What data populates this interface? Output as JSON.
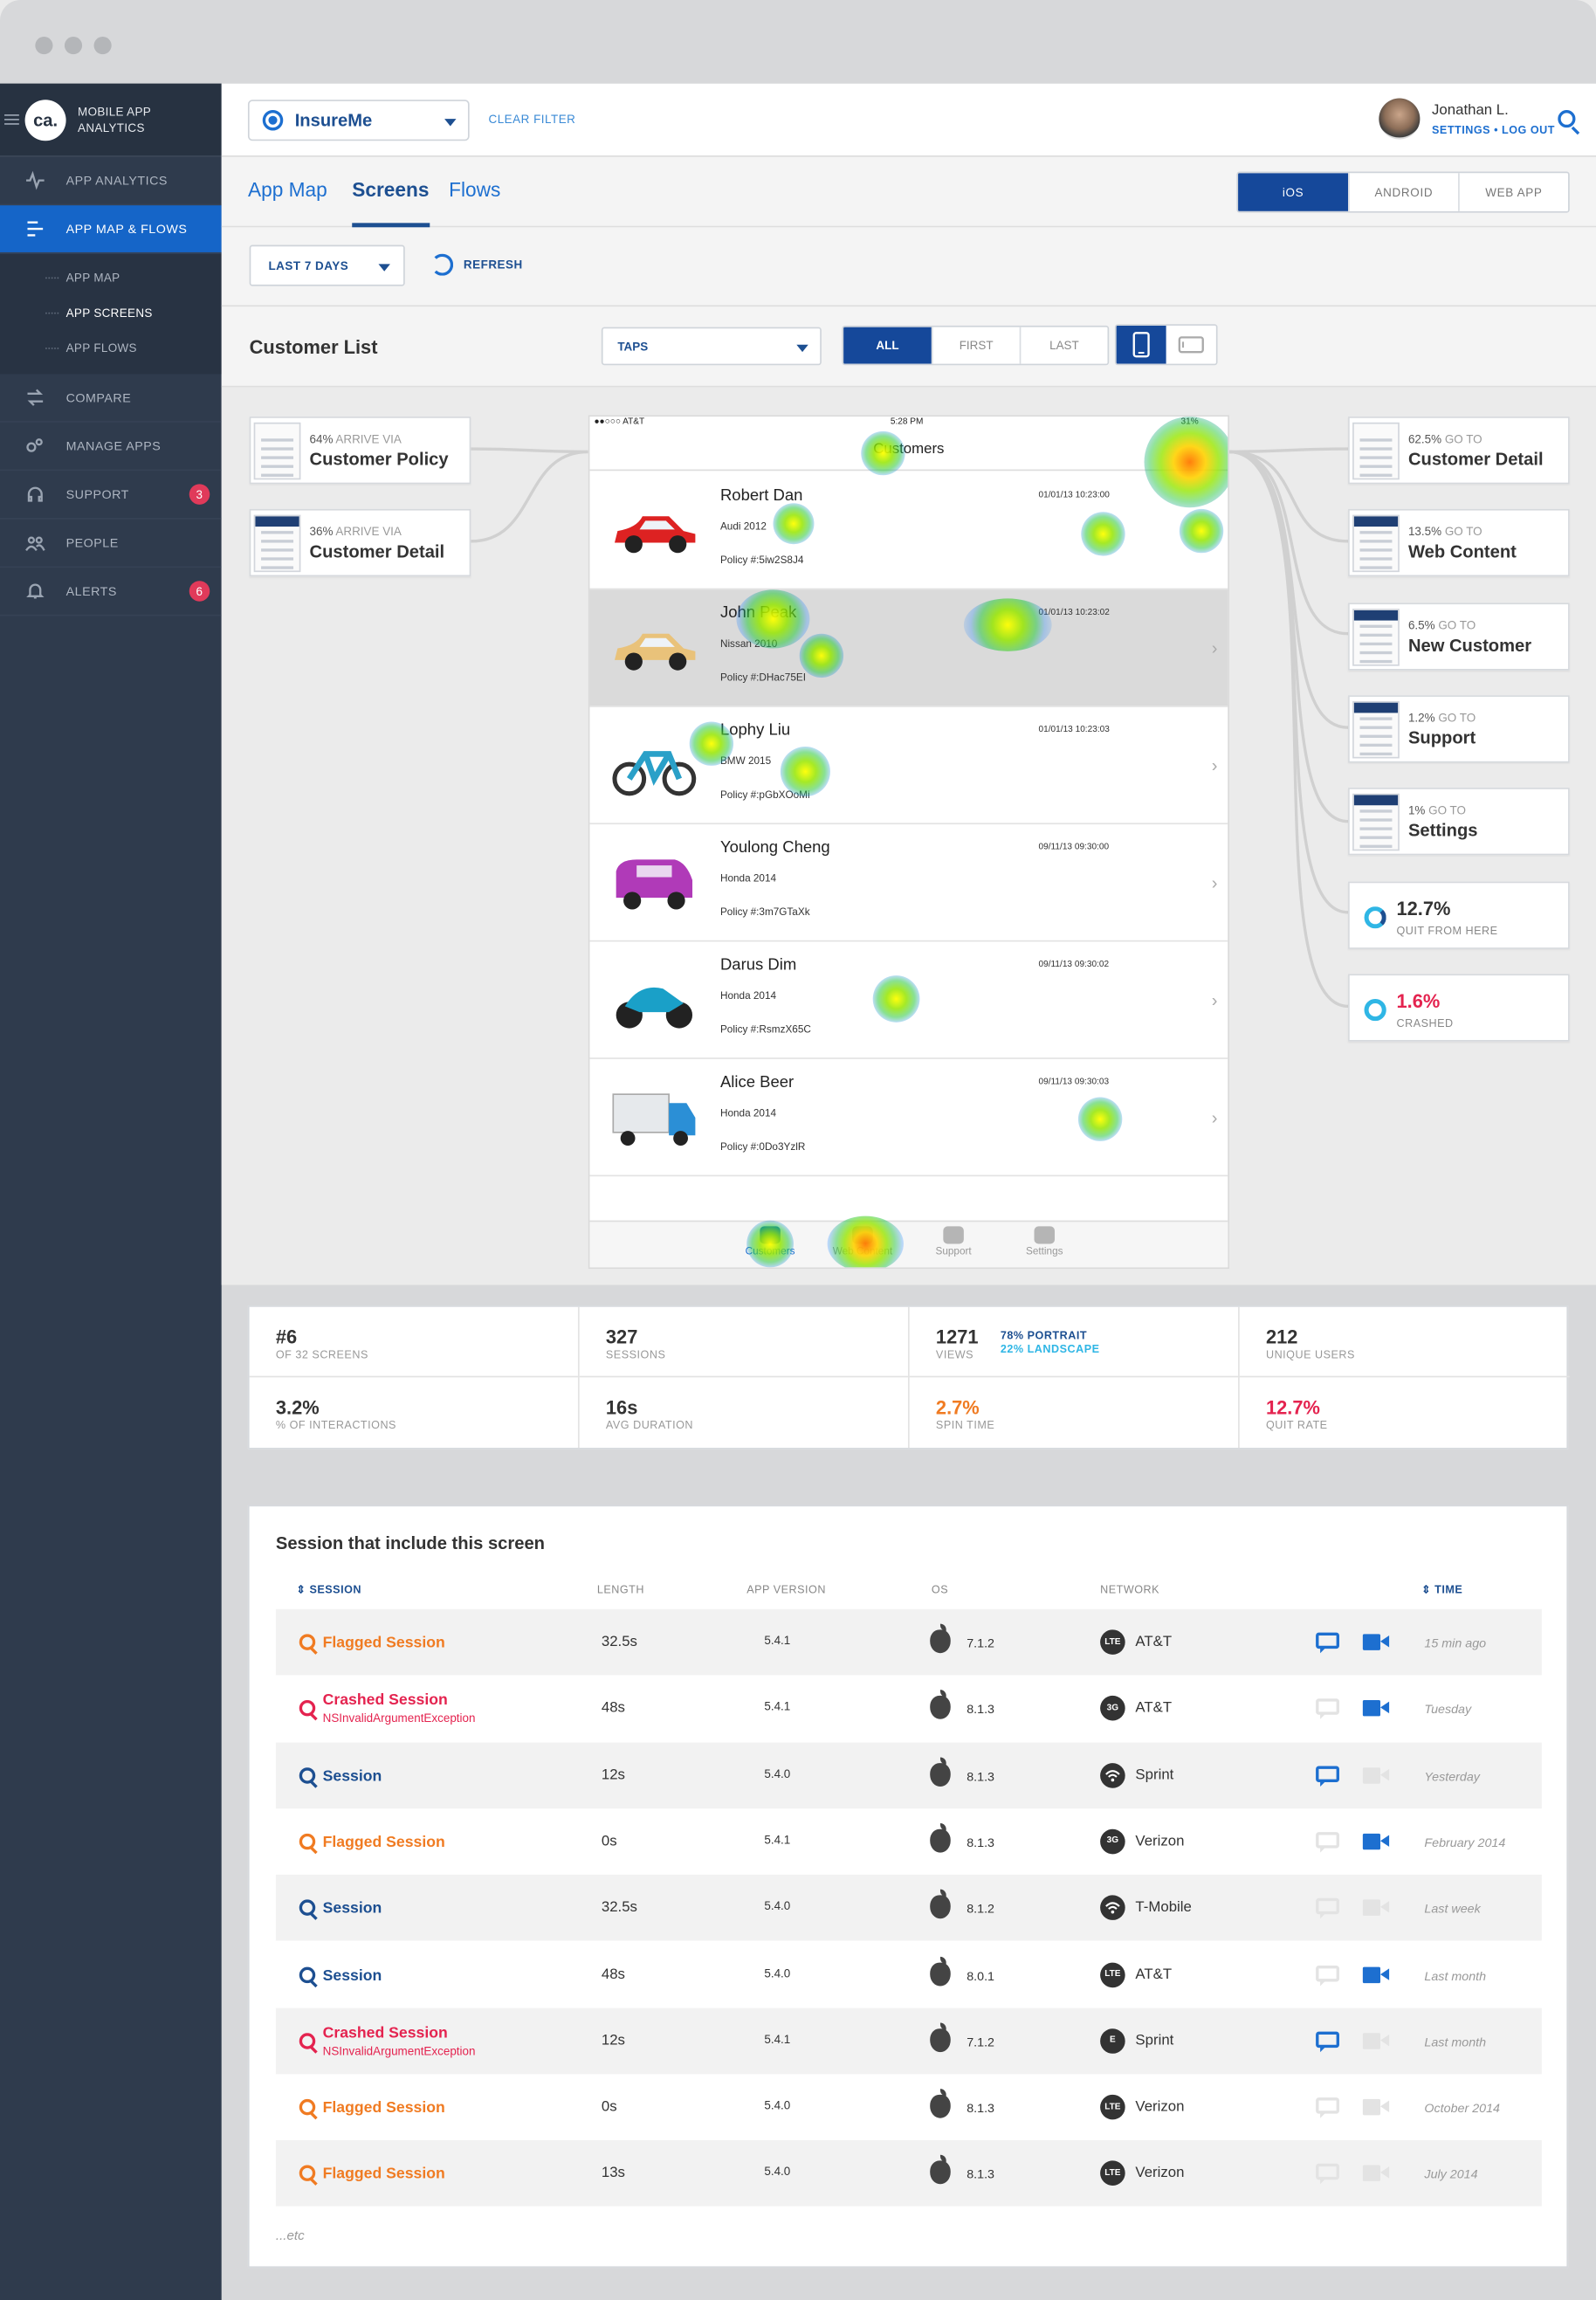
{
  "sidebar": {
    "brand": "MOBILE APP ANALYTICS",
    "logo": "ca.",
    "items": [
      {
        "label": "APP ANALYTICS",
        "icon": "pulse-icon"
      },
      {
        "label": "APP MAP & FLOWS",
        "icon": "flows-icon",
        "active": true
      },
      {
        "label": "COMPARE",
        "icon": "compare-icon"
      },
      {
        "label": "MANAGE APPS",
        "icon": "gears-icon"
      },
      {
        "label": "SUPPORT",
        "icon": "headset-icon",
        "badge": "3"
      },
      {
        "label": "PEOPLE",
        "icon": "people-icon"
      },
      {
        "label": "ALERTS",
        "icon": "bell-icon",
        "badge": "6"
      }
    ],
    "sub_items": [
      {
        "label": "APP MAP"
      },
      {
        "label": "APP SCREENS",
        "active": true
      },
      {
        "label": "APP FLOWS"
      }
    ]
  },
  "topbar": {
    "app_name": "InsureMe",
    "clear_filter": "CLEAR FILTER",
    "user_name": "Jonathan L.",
    "settings": "SETTINGS",
    "separator": "•",
    "logout": "LOG OUT"
  },
  "tabs": [
    {
      "label": "App Map"
    },
    {
      "label": "Screens",
      "active": true
    },
    {
      "label": "Flows"
    }
  ],
  "platforms": [
    {
      "label": "iOS",
      "active": true
    },
    {
      "label": "ANDROID"
    },
    {
      "label": "WEB APP"
    }
  ],
  "filter": {
    "range": "LAST 7 DAYS",
    "refresh": "REFRESH"
  },
  "screen": {
    "title": "Customer List",
    "event_type": "TAPS",
    "segments": [
      {
        "label": "ALL",
        "active": true
      },
      {
        "label": "FIRST"
      },
      {
        "label": "LAST"
      }
    ]
  },
  "inbound": [
    {
      "pct": "64%",
      "via": "ARRIVE VIA",
      "name": "Customer Policy"
    },
    {
      "pct": "36%",
      "via": "ARRIVE VIA",
      "name": "Customer Detail"
    }
  ],
  "outbound": [
    {
      "pct": "62.5%",
      "via": "GO TO",
      "name": "Customer Detail"
    },
    {
      "pct": "13.5%",
      "via": "GO TO",
      "name": "Web Content"
    },
    {
      "pct": "6.5%",
      "via": "GO TO",
      "name": "New Customer"
    },
    {
      "pct": "1.2%",
      "via": "GO TO",
      "name": "Support"
    },
    {
      "pct": "1%",
      "via": "GO TO",
      "name": "Settings"
    }
  ],
  "exits": [
    {
      "value": "12.7%",
      "label": "QUIT FROM HERE"
    },
    {
      "value": "1.6%",
      "label": "CRASHED"
    }
  ],
  "phone": {
    "carrier": "●●○○○ AT&T",
    "time": "5:28 PM",
    "battery": "31%",
    "nav_title": "Customers",
    "rows": [
      {
        "name": "Robert Dan",
        "car": "Audi 2012",
        "policy": "Policy #:5iw2S8J4",
        "date": "01/01/13 10:23:00"
      },
      {
        "name": "John Peak",
        "car": "Nissan 2010",
        "policy": "Policy #:DHac75EI",
        "date": "01/01/13 10:23:02"
      },
      {
        "name": "Lophy Liu",
        "car": "BMW 2015",
        "policy": "Policy #:pGbXOoMi",
        "date": "01/01/13 10:23:03"
      },
      {
        "name": "Youlong Cheng",
        "car": "Honda 2014",
        "policy": "Policy #:3m7GTaXk",
        "date": "09/11/13 09:30:00"
      },
      {
        "name": "Darus Dim",
        "car": "Honda 2014",
        "policy": "Policy #:RsmzX65C",
        "date": "09/11/13 09:30:02"
      },
      {
        "name": "Alice Beer",
        "car": "Honda 2014",
        "policy": "Policy #:0Do3YzlR",
        "date": "09/11/13 09:30:03"
      }
    ],
    "tabbar": [
      "Customers",
      "Web Content",
      "Support",
      "Settings"
    ]
  },
  "stats": [
    {
      "value": "#6",
      "label": "OF 32 SCREENS"
    },
    {
      "value": "327",
      "label": "SESSIONS"
    },
    {
      "value": "1271",
      "label": "VIEWS",
      "portrait": "78% PORTRAIT",
      "landscape": "22% LANDSCAPE"
    },
    {
      "value": "212",
      "label": "UNIQUE USERS"
    },
    {
      "value": "3.2%",
      "label": "% OF INTERACTIONS"
    },
    {
      "value": "16s",
      "label": "AVG DURATION"
    },
    {
      "value": "2.7%",
      "label": "SPIN TIME"
    },
    {
      "value": "12.7%",
      "label": "QUIT RATE"
    }
  ],
  "sessions": {
    "title": "Session that include this screen",
    "headers": {
      "session": "SESSION",
      "length": "LENGTH",
      "version": "APP VERSION",
      "os": "OS",
      "network": "NETWORK",
      "time": "TIME"
    },
    "rows": [
      {
        "type": "flag",
        "name": "Flagged Session",
        "exception": "",
        "length": "32.5s",
        "version": "5.4.1",
        "os": "7.1.2",
        "net_icon": "LTE",
        "network": "AT&T",
        "chat": true,
        "video": true,
        "time": "15 min ago"
      },
      {
        "type": "crash",
        "name": "Crashed Session",
        "exception": "NSInvalidArgumentException",
        "length": "48s",
        "version": "5.4.1",
        "os": "8.1.3",
        "net_icon": "3G",
        "network": "AT&T",
        "chat": false,
        "video": true,
        "time": "Tuesday"
      },
      {
        "type": "norm",
        "name": "Session",
        "exception": "",
        "length": "12s",
        "version": "5.4.0",
        "os": "8.1.3",
        "net_icon": "wifi",
        "network": "Sprint",
        "chat": true,
        "video": false,
        "time": "Yesterday"
      },
      {
        "type": "flag",
        "name": "Flagged Session",
        "exception": "",
        "length": "0s",
        "version": "5.4.1",
        "os": "8.1.3",
        "net_icon": "3G",
        "network": "Verizon",
        "chat": false,
        "video": true,
        "time": "February 2014"
      },
      {
        "type": "norm",
        "name": "Session",
        "exception": "",
        "length": "32.5s",
        "version": "5.4.0",
        "os": "8.1.2",
        "net_icon": "wifi",
        "network": "T-Mobile",
        "chat": false,
        "video": false,
        "time": "Last week"
      },
      {
        "type": "norm",
        "name": "Session",
        "exception": "",
        "length": "48s",
        "version": "5.4.0",
        "os": "8.0.1",
        "net_icon": "LTE",
        "network": "AT&T",
        "chat": false,
        "video": true,
        "time": "Last month"
      },
      {
        "type": "crash",
        "name": "Crashed Session",
        "exception": "NSInvalidArgumentException",
        "length": "12s",
        "version": "5.4.1",
        "os": "7.1.2",
        "net_icon": "E",
        "network": "Sprint",
        "chat": true,
        "video": false,
        "time": "Last month"
      },
      {
        "type": "flag",
        "name": "Flagged Session",
        "exception": "",
        "length": "0s",
        "version": "5.4.0",
        "os": "8.1.3",
        "net_icon": "LTE",
        "network": "Verizon",
        "chat": false,
        "video": false,
        "time": "October 2014"
      },
      {
        "type": "flag",
        "name": "Flagged Session",
        "exception": "",
        "length": "13s",
        "version": "5.4.0",
        "os": "8.1.3",
        "net_icon": "LTE",
        "network": "Verizon",
        "chat": false,
        "video": false,
        "time": "July 2014"
      }
    ],
    "more": "...etc"
  },
  "colors": {
    "accent": "#1d6fd0",
    "brand_dark": "#15489a",
    "sidebar": "#2f3b4d",
    "flag": "#f07b22",
    "crash": "#e4234f"
  }
}
